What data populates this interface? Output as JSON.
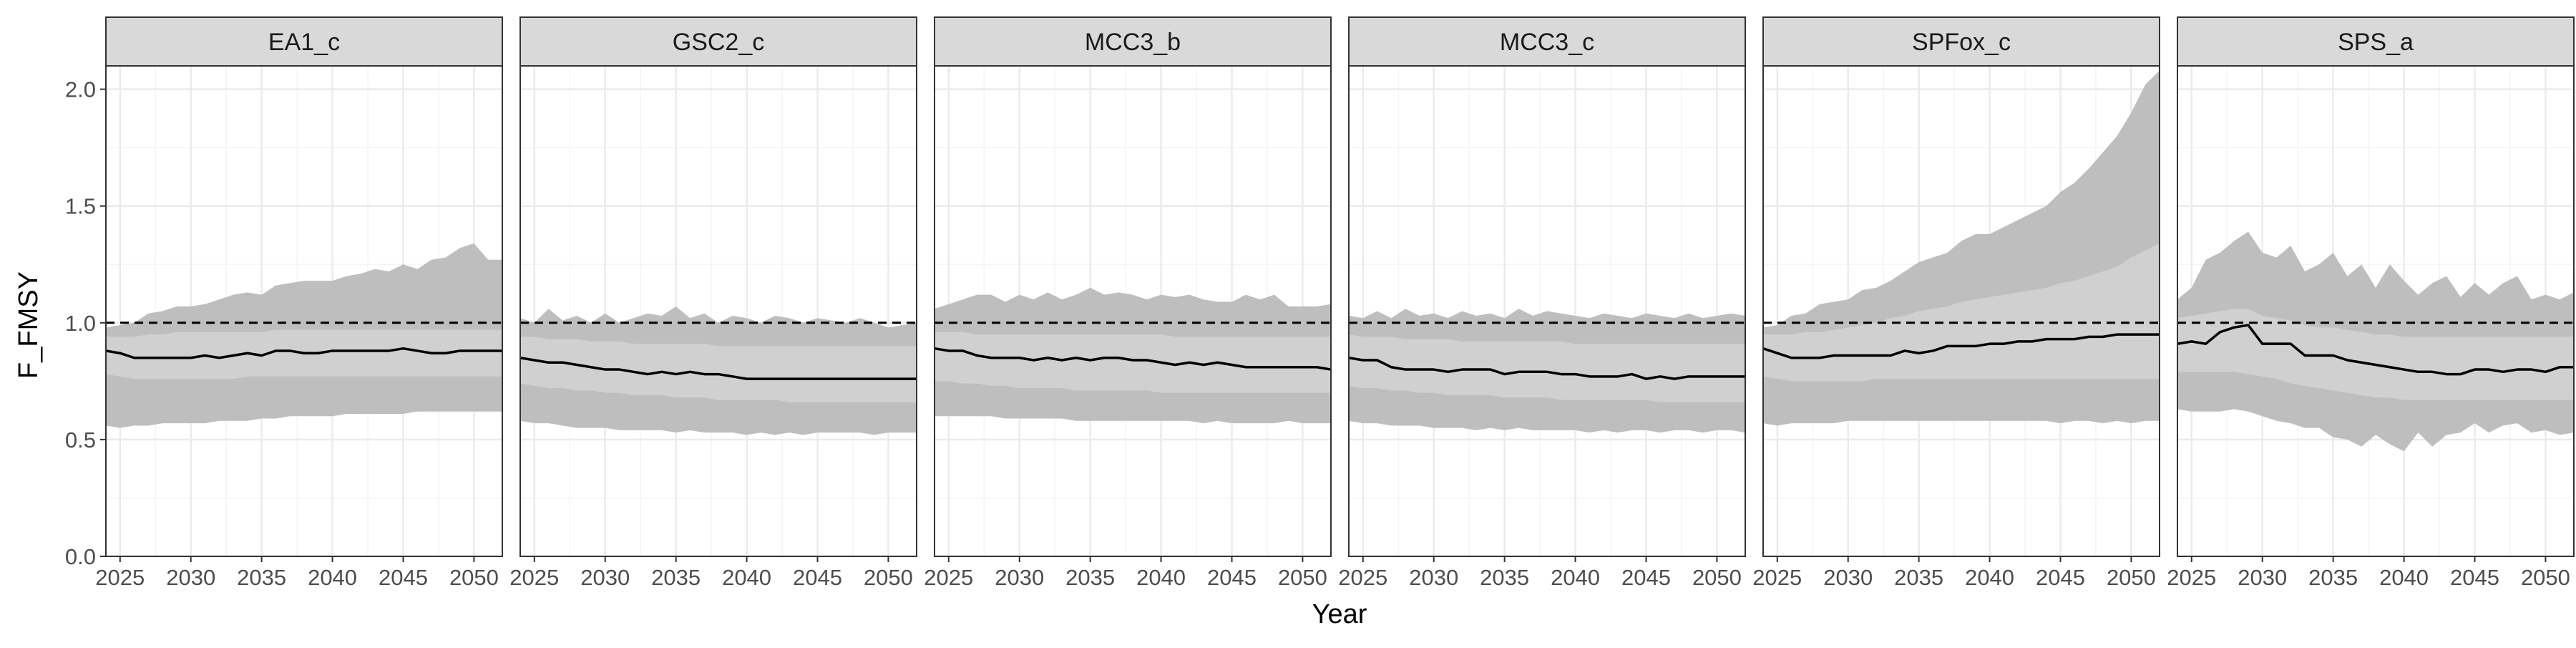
{
  "chart_data": {
    "type": "line",
    "xlabel": "Year",
    "ylabel": "F_FMSY",
    "xlim": [
      2024,
      2052
    ],
    "ylim": [
      0,
      2.1
    ],
    "x_ticks": [
      2025,
      2030,
      2035,
      2040,
      2045,
      2050
    ],
    "x_tick_labels": [
      "2025",
      "2030",
      "2035",
      "2040",
      "2045",
      "2050"
    ],
    "y_ticks": [
      0,
      0.5,
      1,
      1.5,
      2
    ],
    "y_tick_labels": [
      "0.0",
      "0.5",
      "1.0",
      "1.5",
      "2.0"
    ],
    "reference_line": 1,
    "grid": true,
    "years": [
      2024,
      2025,
      2026,
      2027,
      2028,
      2029,
      2030,
      2031,
      2032,
      2033,
      2034,
      2035,
      2036,
      2037,
      2038,
      2039,
      2040,
      2041,
      2042,
      2043,
      2044,
      2045,
      2046,
      2047,
      2048,
      2049,
      2050,
      2051,
      2052
    ],
    "colors": {
      "outer_band": "#bebebe",
      "inner_band": "#d0d0d0",
      "median": "#000000",
      "strip": "#d9d9d9",
      "panel_border": "#333333",
      "grid": "#ebebeb"
    },
    "panels": [
      {
        "name": "EA1_c",
        "median": [
          0.88,
          0.87,
          0.85,
          0.85,
          0.85,
          0.85,
          0.85,
          0.86,
          0.85,
          0.86,
          0.87,
          0.86,
          0.88,
          0.88,
          0.87,
          0.87,
          0.88,
          0.88,
          0.88,
          0.88,
          0.88,
          0.89,
          0.88,
          0.87,
          0.87,
          0.88,
          0.88,
          0.88,
          0.88
        ],
        "inner_upper": [
          0.94,
          0.94,
          0.94,
          0.95,
          0.95,
          0.96,
          0.96,
          0.96,
          0.96,
          0.96,
          0.96,
          0.96,
          0.97,
          0.97,
          0.97,
          0.97,
          0.97,
          0.97,
          0.97,
          0.97,
          0.97,
          0.97,
          0.97,
          0.97,
          0.97,
          0.97,
          0.97,
          0.97,
          0.97
        ],
        "inner_lower": [
          0.78,
          0.77,
          0.76,
          0.76,
          0.76,
          0.76,
          0.76,
          0.76,
          0.76,
          0.76,
          0.77,
          0.77,
          0.77,
          0.77,
          0.77,
          0.77,
          0.77,
          0.77,
          0.77,
          0.77,
          0.77,
          0.77,
          0.77,
          0.77,
          0.77,
          0.77,
          0.77,
          0.77,
          0.77
        ],
        "outer_upper": [
          0.98,
          0.99,
          1.0,
          1.04,
          1.05,
          1.07,
          1.07,
          1.08,
          1.1,
          1.12,
          1.13,
          1.12,
          1.16,
          1.17,
          1.18,
          1.18,
          1.18,
          1.2,
          1.21,
          1.23,
          1.22,
          1.25,
          1.23,
          1.27,
          1.28,
          1.32,
          1.34,
          1.27,
          1.27
        ],
        "outer_lower": [
          0.56,
          0.55,
          0.56,
          0.56,
          0.57,
          0.57,
          0.57,
          0.57,
          0.58,
          0.58,
          0.58,
          0.59,
          0.59,
          0.6,
          0.6,
          0.6,
          0.6,
          0.61,
          0.61,
          0.61,
          0.61,
          0.61,
          0.62,
          0.62,
          0.62,
          0.62,
          0.62,
          0.62,
          0.62
        ]
      },
      {
        "name": "GSC2_c",
        "median": [
          0.85,
          0.84,
          0.83,
          0.83,
          0.82,
          0.81,
          0.8,
          0.8,
          0.79,
          0.78,
          0.79,
          0.78,
          0.79,
          0.78,
          0.78,
          0.77,
          0.76,
          0.76,
          0.76,
          0.76,
          0.76,
          0.76,
          0.76,
          0.76,
          0.76,
          0.76,
          0.76,
          0.76,
          0.76
        ],
        "inner_upper": [
          0.94,
          0.94,
          0.93,
          0.93,
          0.93,
          0.92,
          0.92,
          0.92,
          0.91,
          0.91,
          0.91,
          0.91,
          0.91,
          0.91,
          0.9,
          0.9,
          0.9,
          0.9,
          0.9,
          0.9,
          0.9,
          0.9,
          0.9,
          0.9,
          0.9,
          0.9,
          0.9,
          0.9,
          0.9
        ],
        "inner_lower": [
          0.74,
          0.73,
          0.72,
          0.72,
          0.71,
          0.71,
          0.7,
          0.7,
          0.69,
          0.69,
          0.69,
          0.68,
          0.68,
          0.68,
          0.67,
          0.67,
          0.67,
          0.67,
          0.67,
          0.66,
          0.66,
          0.66,
          0.66,
          0.66,
          0.66,
          0.66,
          0.66,
          0.66,
          0.66
        ],
        "outer_upper": [
          1.02,
          1.0,
          1.06,
          1.01,
          1.03,
          1.0,
          1.04,
          1.0,
          1.02,
          1.04,
          1.03,
          1.07,
          1.02,
          1.04,
          1.0,
          1.03,
          1.02,
          1.0,
          1.03,
          1.02,
          1.0,
          1.02,
          1.01,
          1.0,
          1.02,
          1.0,
          0.98,
          0.99,
          1.0
        ],
        "outer_lower": [
          0.58,
          0.57,
          0.57,
          0.56,
          0.55,
          0.55,
          0.55,
          0.54,
          0.54,
          0.54,
          0.54,
          0.53,
          0.54,
          0.53,
          0.53,
          0.53,
          0.52,
          0.53,
          0.52,
          0.53,
          0.52,
          0.53,
          0.53,
          0.53,
          0.53,
          0.52,
          0.53,
          0.53,
          0.53
        ]
      },
      {
        "name": "MCC3_b",
        "median": [
          0.89,
          0.88,
          0.88,
          0.86,
          0.85,
          0.85,
          0.85,
          0.84,
          0.85,
          0.84,
          0.85,
          0.84,
          0.85,
          0.85,
          0.84,
          0.84,
          0.83,
          0.82,
          0.83,
          0.82,
          0.83,
          0.82,
          0.81,
          0.81,
          0.81,
          0.81,
          0.81,
          0.81,
          0.8
        ],
        "inner_upper": [
          0.96,
          0.96,
          0.96,
          0.95,
          0.95,
          0.95,
          0.95,
          0.95,
          0.95,
          0.95,
          0.95,
          0.95,
          0.95,
          0.95,
          0.95,
          0.95,
          0.95,
          0.94,
          0.94,
          0.94,
          0.94,
          0.94,
          0.94,
          0.94,
          0.94,
          0.94,
          0.94,
          0.94,
          0.94
        ],
        "inner_lower": [
          0.75,
          0.75,
          0.74,
          0.74,
          0.73,
          0.73,
          0.72,
          0.72,
          0.72,
          0.72,
          0.71,
          0.71,
          0.71,
          0.71,
          0.71,
          0.71,
          0.7,
          0.7,
          0.7,
          0.7,
          0.7,
          0.7,
          0.7,
          0.7,
          0.7,
          0.7,
          0.7,
          0.7,
          0.7
        ],
        "outer_upper": [
          1.06,
          1.08,
          1.1,
          1.12,
          1.12,
          1.09,
          1.12,
          1.1,
          1.13,
          1.1,
          1.12,
          1.15,
          1.12,
          1.13,
          1.12,
          1.1,
          1.12,
          1.11,
          1.12,
          1.1,
          1.09,
          1.09,
          1.12,
          1.1,
          1.12,
          1.07,
          1.07,
          1.07,
          1.08
        ],
        "outer_lower": [
          0.6,
          0.6,
          0.6,
          0.6,
          0.6,
          0.59,
          0.59,
          0.59,
          0.59,
          0.59,
          0.58,
          0.58,
          0.58,
          0.58,
          0.58,
          0.58,
          0.58,
          0.58,
          0.58,
          0.57,
          0.58,
          0.57,
          0.57,
          0.57,
          0.57,
          0.58,
          0.57,
          0.57,
          0.57
        ]
      },
      {
        "name": "MCC3_c",
        "median": [
          0.85,
          0.84,
          0.84,
          0.81,
          0.8,
          0.8,
          0.8,
          0.79,
          0.8,
          0.8,
          0.8,
          0.78,
          0.79,
          0.79,
          0.79,
          0.78,
          0.78,
          0.77,
          0.77,
          0.77,
          0.78,
          0.76,
          0.77,
          0.76,
          0.77,
          0.77,
          0.77,
          0.77,
          0.77
        ],
        "inner_upper": [
          0.95,
          0.94,
          0.94,
          0.94,
          0.93,
          0.93,
          0.93,
          0.93,
          0.92,
          0.92,
          0.92,
          0.92,
          0.92,
          0.92,
          0.92,
          0.92,
          0.91,
          0.91,
          0.91,
          0.91,
          0.91,
          0.91,
          0.91,
          0.91,
          0.91,
          0.91,
          0.91,
          0.91,
          0.91
        ],
        "inner_lower": [
          0.73,
          0.72,
          0.72,
          0.71,
          0.71,
          0.7,
          0.7,
          0.69,
          0.69,
          0.69,
          0.69,
          0.68,
          0.68,
          0.68,
          0.68,
          0.67,
          0.67,
          0.67,
          0.67,
          0.67,
          0.67,
          0.67,
          0.66,
          0.66,
          0.66,
          0.66,
          0.66,
          0.66,
          0.66
        ],
        "outer_upper": [
          1.03,
          1.02,
          1.05,
          1.02,
          1.06,
          1.03,
          1.04,
          1.02,
          1.05,
          1.03,
          1.04,
          1.02,
          1.06,
          1.03,
          1.05,
          1.04,
          1.03,
          1.02,
          1.04,
          1.03,
          1.02,
          1.04,
          1.03,
          1.02,
          1.04,
          1.02,
          1.03,
          1.04,
          1.03
        ],
        "outer_lower": [
          0.58,
          0.57,
          0.57,
          0.56,
          0.56,
          0.56,
          0.55,
          0.55,
          0.55,
          0.54,
          0.55,
          0.54,
          0.55,
          0.54,
          0.54,
          0.54,
          0.54,
          0.53,
          0.54,
          0.53,
          0.54,
          0.54,
          0.53,
          0.54,
          0.54,
          0.53,
          0.54,
          0.54,
          0.53
        ]
      },
      {
        "name": "SPFox_c",
        "median": [
          0.89,
          0.87,
          0.85,
          0.85,
          0.85,
          0.86,
          0.86,
          0.86,
          0.86,
          0.86,
          0.88,
          0.87,
          0.88,
          0.9,
          0.9,
          0.9,
          0.91,
          0.91,
          0.92,
          0.92,
          0.93,
          0.93,
          0.93,
          0.94,
          0.94,
          0.95,
          0.95,
          0.95,
          0.95
        ],
        "inner_upper": [
          0.95,
          0.95,
          0.95,
          0.96,
          0.96,
          0.97,
          0.98,
          0.99,
          1.0,
          1.02,
          1.03,
          1.05,
          1.06,
          1.07,
          1.09,
          1.1,
          1.11,
          1.12,
          1.13,
          1.14,
          1.15,
          1.17,
          1.18,
          1.2,
          1.22,
          1.24,
          1.28,
          1.31,
          1.34
        ],
        "inner_lower": [
          0.77,
          0.76,
          0.75,
          0.75,
          0.75,
          0.75,
          0.75,
          0.75,
          0.76,
          0.76,
          0.76,
          0.76,
          0.76,
          0.76,
          0.76,
          0.76,
          0.76,
          0.76,
          0.76,
          0.76,
          0.76,
          0.76,
          0.76,
          0.76,
          0.76,
          0.76,
          0.76,
          0.76,
          0.76
        ],
        "outer_upper": [
          0.98,
          0.99,
          1.03,
          1.04,
          1.08,
          1.09,
          1.1,
          1.14,
          1.15,
          1.18,
          1.22,
          1.26,
          1.28,
          1.3,
          1.35,
          1.38,
          1.38,
          1.41,
          1.44,
          1.47,
          1.5,
          1.56,
          1.6,
          1.66,
          1.73,
          1.8,
          1.9,
          2.02,
          2.08
        ],
        "outer_lower": [
          0.57,
          0.56,
          0.57,
          0.57,
          0.57,
          0.57,
          0.58,
          0.58,
          0.58,
          0.58,
          0.58,
          0.58,
          0.58,
          0.58,
          0.58,
          0.58,
          0.58,
          0.58,
          0.58,
          0.58,
          0.58,
          0.57,
          0.58,
          0.58,
          0.57,
          0.58,
          0.57,
          0.58,
          0.58
        ]
      },
      {
        "name": "SPS_a",
        "median": [
          0.91,
          0.92,
          0.91,
          0.96,
          0.98,
          0.99,
          0.91,
          0.91,
          0.91,
          0.86,
          0.86,
          0.86,
          0.84,
          0.83,
          0.82,
          0.81,
          0.8,
          0.79,
          0.79,
          0.78,
          0.78,
          0.8,
          0.8,
          0.79,
          0.8,
          0.8,
          0.79,
          0.81,
          0.81
        ],
        "inner_upper": [
          1.02,
          1.03,
          1.04,
          1.05,
          1.06,
          1.06,
          1.03,
          1.02,
          1.01,
          0.99,
          0.98,
          0.98,
          0.97,
          0.96,
          0.95,
          0.95,
          0.94,
          0.94,
          0.94,
          0.94,
          0.94,
          0.94,
          0.94,
          0.94,
          0.94,
          0.94,
          0.94,
          0.94,
          0.94
        ],
        "inner_lower": [
          0.79,
          0.79,
          0.79,
          0.79,
          0.79,
          0.78,
          0.77,
          0.76,
          0.74,
          0.73,
          0.72,
          0.71,
          0.7,
          0.69,
          0.68,
          0.68,
          0.67,
          0.67,
          0.67,
          0.67,
          0.67,
          0.67,
          0.67,
          0.67,
          0.67,
          0.67,
          0.67,
          0.67,
          0.67
        ],
        "outer_upper": [
          1.1,
          1.15,
          1.27,
          1.3,
          1.35,
          1.39,
          1.3,
          1.28,
          1.33,
          1.22,
          1.25,
          1.3,
          1.2,
          1.25,
          1.15,
          1.25,
          1.18,
          1.12,
          1.17,
          1.2,
          1.11,
          1.17,
          1.12,
          1.17,
          1.2,
          1.1,
          1.12,
          1.1,
          1.13
        ],
        "outer_lower": [
          0.63,
          0.62,
          0.62,
          0.62,
          0.63,
          0.62,
          0.6,
          0.58,
          0.57,
          0.55,
          0.55,
          0.51,
          0.5,
          0.47,
          0.52,
          0.48,
          0.45,
          0.53,
          0.47,
          0.52,
          0.53,
          0.57,
          0.53,
          0.56,
          0.57,
          0.53,
          0.54,
          0.52,
          0.53
        ]
      }
    ]
  }
}
